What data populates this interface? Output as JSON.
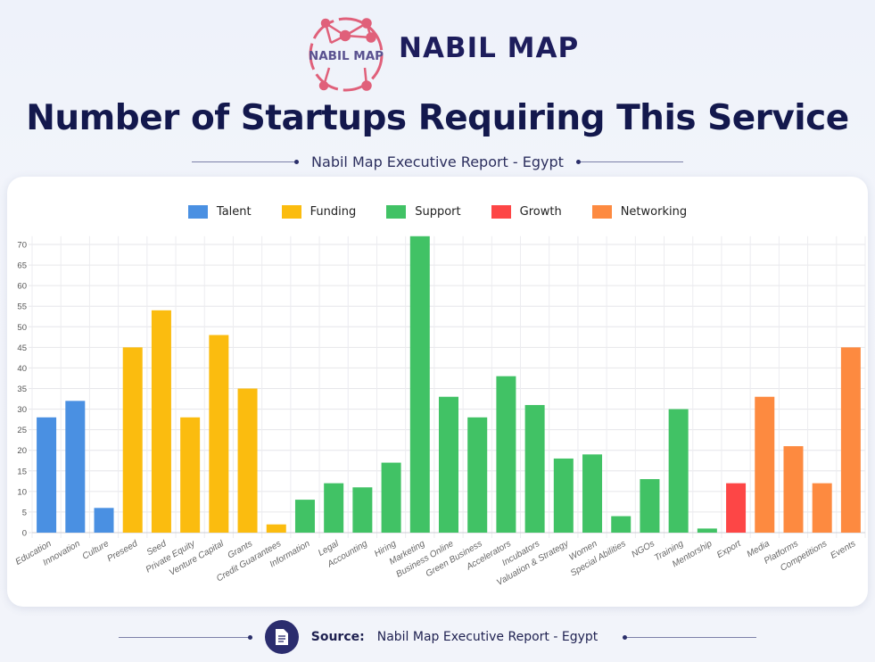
{
  "header": {
    "logo_text": "NABIL MAP",
    "brand": "NABIL MAP",
    "title": "Number of Startups Requiring This Service",
    "subtitle": "Nabil Map Executive Report - Egypt"
  },
  "footer": {
    "source_label": "Source:",
    "source_text": "Nabil Map Executive Report - Egypt",
    "icon": "document-icon"
  },
  "chart_data": {
    "type": "bar",
    "title": "",
    "xlabel": "",
    "ylabel": "",
    "ylim": [
      0,
      72
    ],
    "yticks": [
      0,
      5,
      10,
      15,
      20,
      25,
      30,
      35,
      40,
      45,
      50,
      55,
      60,
      65,
      70
    ],
    "grid": true,
    "legend_position": "top",
    "legend": [
      {
        "name": "Talent",
        "color": "#4a90e2"
      },
      {
        "name": "Funding",
        "color": "#fbbc0f"
      },
      {
        "name": "Support",
        "color": "#41c265"
      },
      {
        "name": "Growth",
        "color": "#fd4646"
      },
      {
        "name": "Networking",
        "color": "#fd8a40"
      }
    ],
    "categories": [
      "Education",
      "Innovation",
      "Culture",
      "Preseed",
      "Seed",
      "Private Equity",
      "Venture Capital",
      "Grants",
      "Credit Guarantees",
      "Information",
      "Legal",
      "Accounting",
      "Hiring",
      "Marketing",
      "Business Online",
      "Green Business",
      "Accelerators",
      "Incubators",
      "Valuation & Strategy",
      "Women",
      "Special Abilities",
      "NGOs",
      "Training",
      "Mentorship",
      "Export",
      "Media",
      "Platforms",
      "Competitions",
      "Events"
    ],
    "values": [
      28,
      32,
      6,
      45,
      54,
      28,
      48,
      35,
      2,
      8,
      12,
      11,
      17,
      72,
      33,
      28,
      38,
      31,
      18,
      19,
      4,
      13,
      30,
      1,
      12,
      33,
      21,
      12,
      45
    ],
    "groups": [
      "Talent",
      "Talent",
      "Talent",
      "Funding",
      "Funding",
      "Funding",
      "Funding",
      "Funding",
      "Funding",
      "Support",
      "Support",
      "Support",
      "Support",
      "Support",
      "Support",
      "Support",
      "Support",
      "Support",
      "Support",
      "Support",
      "Support",
      "Support",
      "Support",
      "Support",
      "Growth",
      "Networking",
      "Networking",
      "Networking",
      "Networking"
    ]
  }
}
